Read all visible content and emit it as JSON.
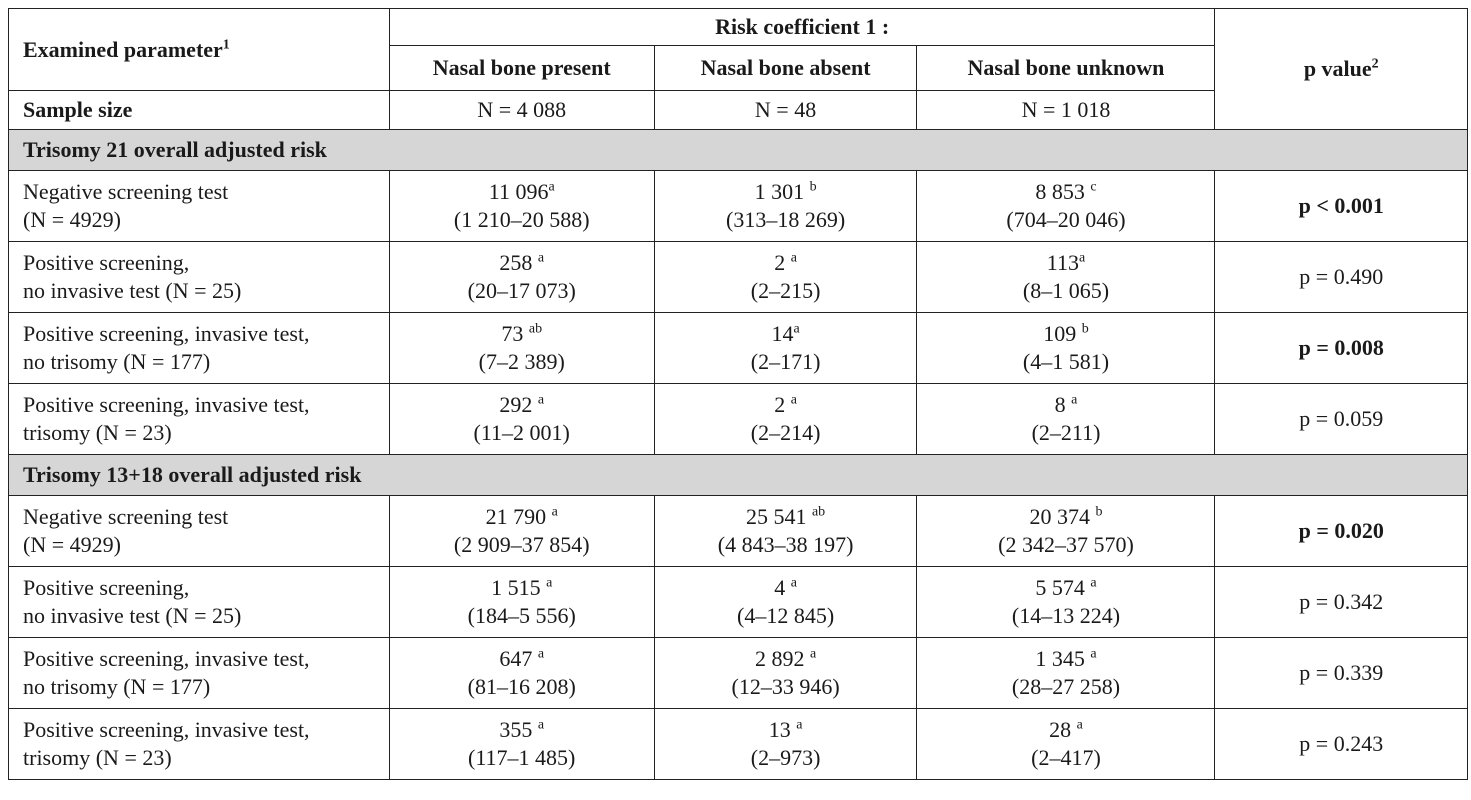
{
  "header": {
    "examined": "Examined parameter",
    "examined_sup": "1",
    "risk_coef": "Risk coefficient 1 :",
    "present": "Nasal bone present",
    "absent": "Nasal bone absent",
    "unknown": "Nasal bone unknown",
    "pvalue": "p value",
    "pvalue_sup": "2"
  },
  "sample": {
    "label": "Sample size",
    "present": "N = 4 088",
    "absent": "N = 48",
    "unknown": "N = 1 018"
  },
  "sections": [
    {
      "title": "Trisomy 21 overall adjusted risk",
      "rows": [
        {
          "l1": "Negative screening test",
          "l2": "(N = 4929)",
          "present": {
            "v": "11 096",
            "s": "a",
            "r": "(1 210–20 588)"
          },
          "absent": {
            "v": "1 301 ",
            "s": "b",
            "r": "(313–18 269)"
          },
          "unknown": {
            "v": "8 853 ",
            "s": "c",
            "r": "(704–20 046)"
          },
          "p": "p < 0.001",
          "sig": true
        },
        {
          "l1": "Positive screening,",
          "l2": "no invasive test (N = 25)",
          "present": {
            "v": "258 ",
            "s": "a",
            "r": "(20–17 073)"
          },
          "absent": {
            "v": "2 ",
            "s": "a",
            "r": "(2–215)"
          },
          "unknown": {
            "v": "113",
            "s": "a",
            "r": "(8–1 065)"
          },
          "p": "p = 0.490",
          "sig": false
        },
        {
          "l1": "Positive screening, invasive test,",
          "l2": "no trisomy (N = 177)",
          "present": {
            "v": "73 ",
            "s": "ab",
            "r": "(7–2 389)"
          },
          "absent": {
            "v": "14",
            "s": "a",
            "r": "(2–171)"
          },
          "unknown": {
            "v": "109 ",
            "s": "b",
            "r": "(4–1 581)"
          },
          "p": "p = 0.008",
          "sig": true
        },
        {
          "l1": "Positive screening, invasive test,",
          "l2": "trisomy (N = 23)",
          "present": {
            "v": "292 ",
            "s": "a",
            "r": "(11–2 001)"
          },
          "absent": {
            "v": "2 ",
            "s": "a",
            "r": "(2–214)"
          },
          "unknown": {
            "v": "8 ",
            "s": "a",
            "r": "(2–211)"
          },
          "p": "p = 0.059",
          "sig": false
        }
      ]
    },
    {
      "title": "Trisomy 13+18 overall adjusted risk",
      "rows": [
        {
          "l1": "Negative screening test",
          "l2": "(N = 4929)",
          "present": {
            "v": "21 790 ",
            "s": "a",
            "r": "(2 909–37 854)"
          },
          "absent": {
            "v": "25 541 ",
            "s": "ab",
            "r": "(4 843–38 197)"
          },
          "unknown": {
            "v": "20 374 ",
            "s": "b",
            "r": "(2 342–37 570)"
          },
          "p": "p = 0.020",
          "sig": true
        },
        {
          "l1": "Positive screening,",
          "l2": "no invasive test (N = 25)",
          "present": {
            "v": "1 515 ",
            "s": "a",
            "r": "(184–5 556)"
          },
          "absent": {
            "v": "4 ",
            "s": "a",
            "r": "(4–12 845)"
          },
          "unknown": {
            "v": "5 574 ",
            "s": "a",
            "r": "(14–13 224)"
          },
          "p": "p = 0.342",
          "sig": false
        },
        {
          "l1": "Positive screening, invasive test,",
          "l2": "no trisomy (N = 177)",
          "present": {
            "v": "647 ",
            "s": "a",
            "r": "(81–16 208)"
          },
          "absent": {
            "v": "2 892 ",
            "s": "a",
            "r": "(12–33 946)"
          },
          "unknown": {
            "v": "1 345 ",
            "s": "a",
            "r": "(28–27 258)"
          },
          "p": "p = 0.339",
          "sig": false
        },
        {
          "l1": "Positive screening, invasive test,",
          "l2": "trisomy (N = 23)",
          "present": {
            "v": "355 ",
            "s": "a",
            "r": "(117–1 485)"
          },
          "absent": {
            "v": "13 ",
            "s": "a",
            "r": "(2–973)"
          },
          "unknown": {
            "v": "28 ",
            "s": "a",
            "r": "(2–417)"
          },
          "p": "p = 0.243",
          "sig": false
        }
      ]
    }
  ]
}
